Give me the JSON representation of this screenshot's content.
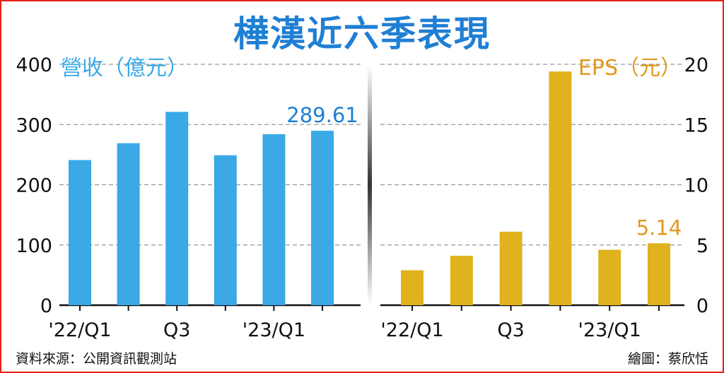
{
  "title": "樺漢近六季表現",
  "source": "資料來源：公開資訊觀測站",
  "credit": "繪圖：蔡欣恬",
  "colors": {
    "title": "#1f7fd3",
    "revenue": "#3aa9e6",
    "eps": "#e0b21e",
    "epsLabel": "#e09a1e",
    "axis": "#111111",
    "grid": "#999999"
  },
  "chart_data": [
    {
      "type": "bar",
      "title": "營收（億元）",
      "categories": [
        "'22/Q1",
        "",
        "Q3",
        "",
        "'23/Q1",
        ""
      ],
      "values": [
        241,
        269,
        321,
        249,
        284,
        289.61
      ],
      "ylim": [
        0,
        400
      ],
      "yticks": [
        "0",
        "100",
        "200",
        "300",
        "400"
      ],
      "data_labels": [
        {
          "index": 5,
          "text": "289.61"
        }
      ],
      "grid": true
    },
    {
      "type": "bar",
      "title": "EPS（元）",
      "categories": [
        "'22/Q1",
        "",
        "Q3",
        "",
        "'23/Q1",
        ""
      ],
      "values": [
        2.9,
        4.1,
        6.1,
        19.4,
        4.6,
        5.14
      ],
      "ylim": [
        0,
        20
      ],
      "yticks": [
        "0",
        "5",
        "10",
        "15",
        "20"
      ],
      "data_labels": [
        {
          "index": 5,
          "text": "5.14"
        }
      ],
      "grid": true
    }
  ]
}
